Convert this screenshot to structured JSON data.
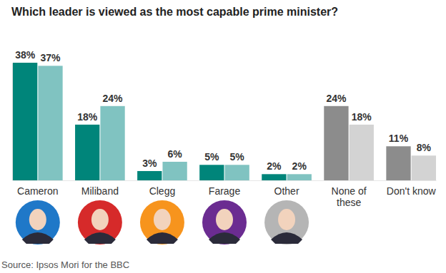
{
  "chart_data": {
    "type": "bar",
    "title": "Which leader is viewed as the most capable prime minister?",
    "source": "Source: Ipsos Mori for the BBC",
    "categories": [
      "Cameron",
      "Miliband",
      "Clegg",
      "Farage",
      "Other",
      "None of these",
      "Don't know"
    ],
    "series": [
      {
        "colors": [
          "#00857a",
          "#00857a",
          "#00857a",
          "#00857a",
          "#00857a",
          "#8c8c8c",
          "#8c8c8c"
        ],
        "values": [
          38,
          18,
          3,
          5,
          2,
          24,
          11
        ],
        "value_labels": [
          "38%",
          "18%",
          "3%",
          "5%",
          "2%",
          "24%",
          "11%"
        ]
      },
      {
        "colors": [
          "#80c3c1",
          "#80c3c1",
          "#80c3c1",
          "#80c3c1",
          "#80c3c1",
          "#d3d3d3",
          "#d3d3d3"
        ],
        "values": [
          37,
          24,
          6,
          5,
          2,
          18,
          8
        ],
        "value_labels": [
          "37%",
          "24%",
          "6%",
          "5%",
          "2%",
          "18%",
          "8%"
        ]
      }
    ],
    "ylim": [
      0,
      38
    ],
    "tick_labels": false,
    "data_labels": true
  }
}
